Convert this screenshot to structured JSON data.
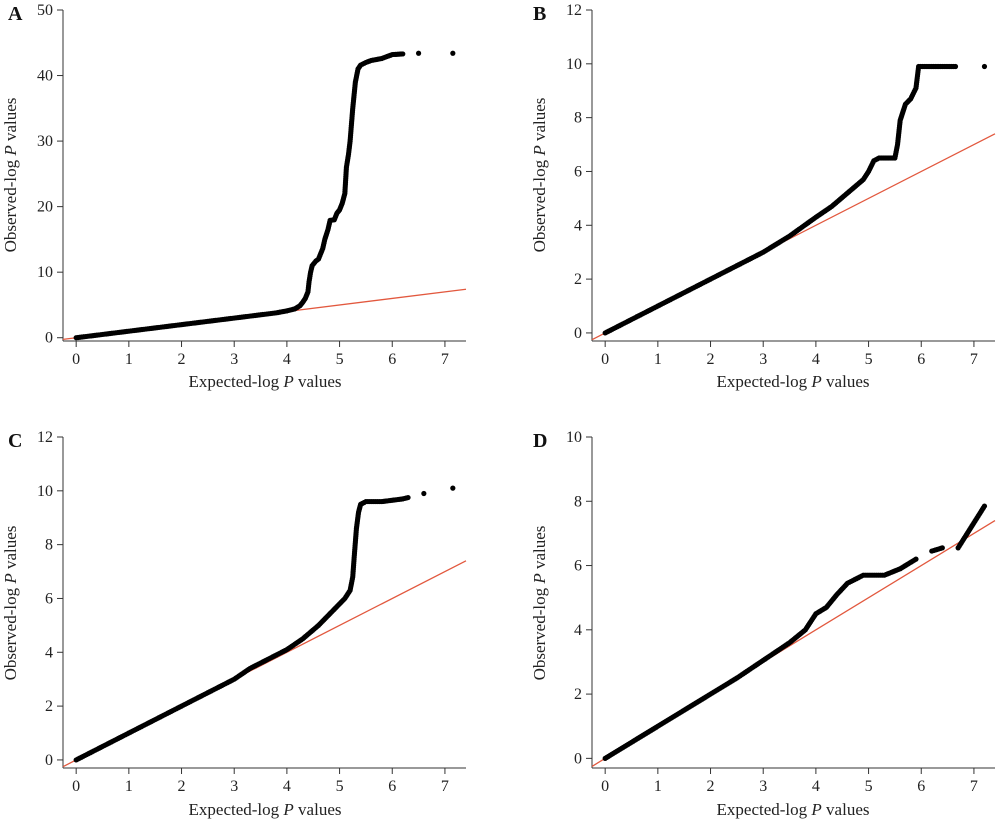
{
  "colors": {
    "points": "#000000",
    "reference_line": "#e2583e",
    "axes": "#333333"
  },
  "chart_data": [
    {
      "type": "scatter",
      "panel": "A",
      "xlabel_prefix": "Expected-log ",
      "xlabel_italic": "P",
      "xlabel_suffix": " values",
      "ylabel_prefix": "Observed-log ",
      "ylabel_italic": "P",
      "ylabel_suffix": " values",
      "xlim": [
        -0.25,
        7.4
      ],
      "ylim": [
        -0.5,
        50
      ],
      "xticks": [
        0,
        1,
        2,
        3,
        4,
        5,
        6,
        7
      ],
      "yticks": [
        0,
        10,
        20,
        30,
        40,
        50
      ],
      "reference_line": {
        "from": [
          -0.25,
          -0.25
        ],
        "to": [
          7.4,
          7.4
        ]
      },
      "points": [
        [
          0,
          0
        ],
        [
          0.5,
          0.5
        ],
        [
          1,
          1
        ],
        [
          1.5,
          1.5
        ],
        [
          2,
          2
        ],
        [
          2.5,
          2.5
        ],
        [
          3,
          3
        ],
        [
          3.5,
          3.5
        ],
        [
          3.8,
          3.8
        ],
        [
          4,
          4.1
        ],
        [
          4.15,
          4.4
        ],
        [
          4.25,
          4.9
        ],
        [
          4.3,
          5.4
        ],
        [
          4.35,
          6
        ],
        [
          4.4,
          7
        ],
        [
          4.42,
          8.5
        ],
        [
          4.45,
          10
        ],
        [
          4.48,
          11
        ],
        [
          4.55,
          11.7
        ],
        [
          4.6,
          12
        ],
        [
          4.68,
          13.6
        ],
        [
          4.72,
          15
        ],
        [
          4.78,
          16.5
        ],
        [
          4.82,
          17.9
        ],
        [
          4.9,
          18
        ],
        [
          4.95,
          19
        ],
        [
          5.0,
          19.5
        ],
        [
          5.05,
          20.5
        ],
        [
          5.1,
          22
        ],
        [
          5.13,
          26
        ],
        [
          5.17,
          28
        ],
        [
          5.2,
          30
        ],
        [
          5.25,
          35
        ],
        [
          5.3,
          39
        ],
        [
          5.35,
          41
        ],
        [
          5.4,
          41.6
        ],
        [
          5.5,
          42
        ],
        [
          5.6,
          42.3
        ],
        [
          5.8,
          42.6
        ],
        [
          6.0,
          43.2
        ],
        [
          6.2,
          43.3
        ],
        [
          6.5,
          43.4
        ],
        [
          7.15,
          43.4
        ]
      ]
    },
    {
      "type": "scatter",
      "panel": "B",
      "xlabel_prefix": "Expected-log ",
      "xlabel_italic": "P",
      "xlabel_suffix": " values",
      "ylabel_prefix": "Observed-log ",
      "ylabel_italic": "P",
      "ylabel_suffix": " values",
      "xlim": [
        -0.25,
        7.4
      ],
      "ylim": [
        -0.3,
        12
      ],
      "xticks": [
        0,
        1,
        2,
        3,
        4,
        5,
        6,
        7
      ],
      "yticks": [
        0,
        2,
        4,
        6,
        8,
        10,
        12
      ],
      "reference_line": {
        "from": [
          -0.25,
          -0.25
        ],
        "to": [
          7.4,
          7.4
        ]
      },
      "points": [
        [
          0,
          0
        ],
        [
          0.5,
          0.5
        ],
        [
          1,
          1
        ],
        [
          1.5,
          1.5
        ],
        [
          2,
          2
        ],
        [
          2.5,
          2.5
        ],
        [
          3,
          3
        ],
        [
          3.5,
          3.6
        ],
        [
          4,
          4.3
        ],
        [
          4.3,
          4.7
        ],
        [
          4.6,
          5.2
        ],
        [
          4.9,
          5.7
        ],
        [
          5.0,
          6.0
        ],
        [
          5.1,
          6.4
        ],
        [
          5.2,
          6.5
        ],
        [
          5.5,
          6.5
        ],
        [
          5.55,
          7
        ],
        [
          5.6,
          7.9
        ],
        [
          5.65,
          8.2
        ],
        [
          5.7,
          8.5
        ],
        [
          5.8,
          8.7
        ],
        [
          5.9,
          9.1
        ],
        [
          5.95,
          9.9
        ],
        [
          6.2,
          9.9
        ],
        [
          6.4,
          9.9
        ],
        [
          6.65,
          9.9
        ],
        [
          7.2,
          9.9
        ]
      ]
    },
    {
      "type": "scatter",
      "panel": "C",
      "xlabel_prefix": "Expected-log ",
      "xlabel_italic": "P",
      "xlabel_suffix": " values",
      "ylabel_prefix": "Observed-log ",
      "ylabel_italic": "P",
      "ylabel_suffix": " values",
      "xlim": [
        -0.25,
        7.4
      ],
      "ylim": [
        -0.3,
        12
      ],
      "xticks": [
        0,
        1,
        2,
        3,
        4,
        5,
        6,
        7
      ],
      "yticks": [
        0,
        2,
        4,
        6,
        8,
        10,
        12
      ],
      "reference_line": {
        "from": [
          -0.25,
          -0.25
        ],
        "to": [
          7.4,
          7.4
        ]
      },
      "points": [
        [
          0,
          0
        ],
        [
          0.5,
          0.5
        ],
        [
          1,
          1
        ],
        [
          1.5,
          1.5
        ],
        [
          2,
          2
        ],
        [
          2.5,
          2.5
        ],
        [
          3,
          3
        ],
        [
          3.3,
          3.4
        ],
        [
          3.6,
          3.7
        ],
        [
          4,
          4.1
        ],
        [
          4.3,
          4.5
        ],
        [
          4.6,
          5
        ],
        [
          4.9,
          5.6
        ],
        [
          5.1,
          6
        ],
        [
          5.2,
          6.3
        ],
        [
          5.25,
          6.8
        ],
        [
          5.28,
          7.6
        ],
        [
          5.32,
          8.6
        ],
        [
          5.36,
          9.2
        ],
        [
          5.4,
          9.5
        ],
        [
          5.5,
          9.6
        ],
        [
          5.8,
          9.6
        ],
        [
          6.0,
          9.65
        ],
        [
          6.2,
          9.7
        ],
        [
          6.3,
          9.75
        ],
        [
          6.6,
          9.9
        ],
        [
          7.15,
          10.1
        ]
      ]
    },
    {
      "type": "scatter",
      "panel": "D",
      "xlabel_prefix": "Expected-log ",
      "xlabel_italic": "P",
      "xlabel_suffix": " values",
      "ylabel_prefix": "Observed-log ",
      "ylabel_italic": "P",
      "ylabel_suffix": " values",
      "xlim": [
        -0.25,
        7.4
      ],
      "ylim": [
        -0.3,
        10
      ],
      "xticks": [
        0,
        1,
        2,
        3,
        4,
        5,
        6,
        7
      ],
      "yticks": [
        0,
        2,
        4,
        6,
        8,
        10
      ],
      "reference_line": {
        "from": [
          -0.25,
          -0.25
        ],
        "to": [
          7.4,
          7.4
        ]
      },
      "points": [
        [
          0,
          0
        ],
        [
          0.5,
          0.5
        ],
        [
          1,
          1
        ],
        [
          1.5,
          1.5
        ],
        [
          2,
          2
        ],
        [
          2.5,
          2.5
        ],
        [
          3,
          3.05
        ],
        [
          3.5,
          3.6
        ],
        [
          3.8,
          4
        ],
        [
          4,
          4.5
        ],
        [
          4.2,
          4.7
        ],
        [
          4.4,
          5.1
        ],
        [
          4.6,
          5.45
        ],
        [
          4.9,
          5.7
        ],
        [
          5.3,
          5.7
        ],
        [
          5.6,
          5.9
        ],
        [
          5.9,
          6.2
        ],
        [
          6.2,
          6.45
        ],
        [
          6.4,
          6.55
        ],
        [
          6.7,
          6.55
        ],
        [
          7.2,
          7.85
        ]
      ]
    }
  ]
}
